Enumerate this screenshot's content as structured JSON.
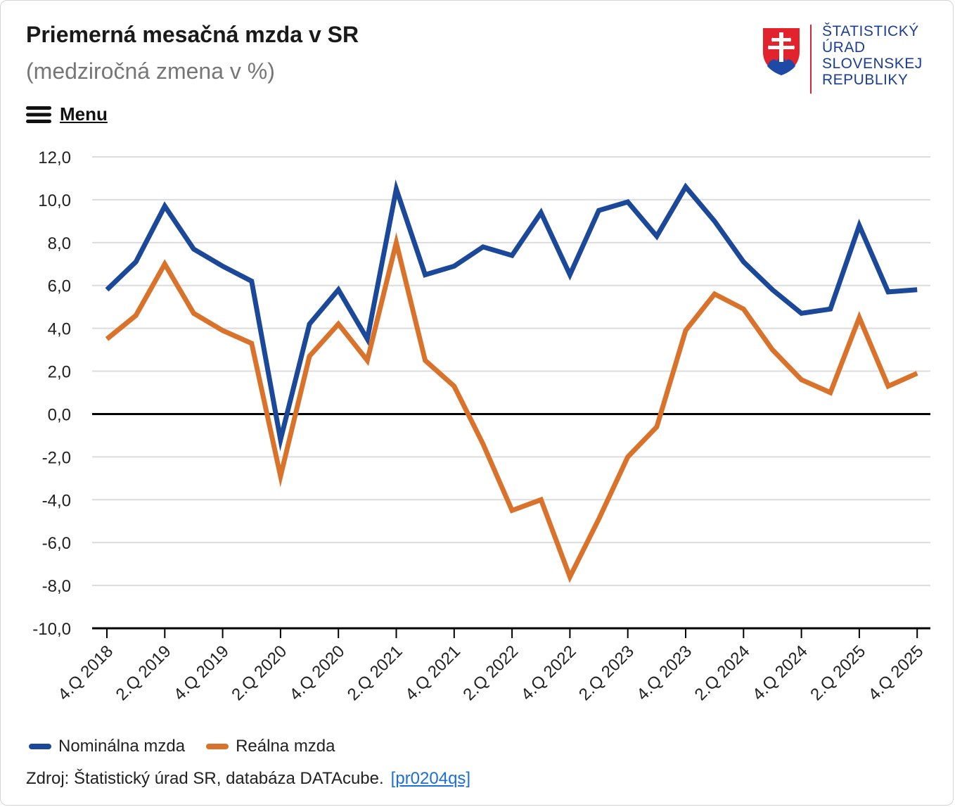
{
  "header": {
    "title": "Priemerná mesačná mzda v SR",
    "subtitle": "(medziročná zmena v %)"
  },
  "menu": {
    "label": "Menu",
    "icon": "hamburger-icon"
  },
  "logo": {
    "lines": [
      "ŠTATISTICKÝ",
      "ÚRAD",
      "SLOVENSKEJ",
      "REPUBLIKY"
    ],
    "crest_icon": "slovak-coat-of-arms-icon",
    "text_color": "#1c3d96",
    "accent_color": "#d0283a"
  },
  "source": {
    "text": "Zdroj: Štatistický úrad SR, databáza DATAcube.",
    "link_text": "[pr0204qs]"
  },
  "chart_data": {
    "type": "line",
    "title": "Priemerná mesačná mzda v SR",
    "subtitle": "(medziročná zmena v %)",
    "xlabel": "",
    "ylabel": "",
    "ylim": [
      -10,
      12
    ],
    "yticks": [
      12,
      10,
      8,
      6,
      4,
      2,
      0,
      -2,
      -4,
      -6,
      -8,
      -10
    ],
    "ytick_labels": [
      "12,0",
      "10,0",
      "8,0",
      "6,0",
      "4,0",
      "2,0",
      "0,0",
      "-2,0",
      "-4,0",
      "-6,0",
      "-8,0",
      "-10,0"
    ],
    "grid": true,
    "legend_position": "bottom-left",
    "categories": [
      "4.Q 2018",
      "1.Q 2019",
      "2.Q 2019",
      "3.Q 2019",
      "4.Q 2019",
      "1.Q 2020",
      "2.Q 2020",
      "3.Q 2020",
      "4.Q 2020",
      "1.Q 2021",
      "2.Q 2021",
      "3.Q 2021",
      "4.Q 2021",
      "1.Q 2022",
      "2.Q 2022",
      "3.Q 2022",
      "4.Q 2022",
      "1.Q 2023",
      "2.Q 2023",
      "3.Q 2023",
      "4.Q 2023",
      "1.Q 2024",
      "2.Q 2024",
      "3.Q 2024",
      "4.Q 2024",
      "1.Q 2025",
      "2.Q 2025",
      "3.Q 2025",
      "4.Q 2025"
    ],
    "tick_labels": [
      "4.Q 2018",
      "2.Q 2019",
      "4.Q 2019",
      "2.Q 2020",
      "4.Q 2020",
      "2.Q 2021",
      "4.Q 2021",
      "2.Q 2022",
      "4.Q 2022",
      "2.Q 2023",
      "4.Q 2023",
      "2.Q 2024",
      "4.Q 2024",
      "2.Q 2025",
      "4.Q 2025"
    ],
    "series": [
      {
        "name": "Nominálna mzda",
        "color": "#1b4899",
        "values": [
          5.8,
          7.1,
          9.7,
          7.7,
          6.9,
          6.2,
          -1.2,
          4.2,
          5.8,
          3.5,
          10.5,
          6.5,
          6.9,
          7.8,
          7.4,
          9.4,
          6.5,
          9.5,
          9.9,
          8.3,
          10.6,
          9.0,
          7.1,
          5.8,
          4.7,
          4.9,
          8.8,
          5.7,
          5.8
        ]
      },
      {
        "name": "Reálna mzda",
        "color": "#d9722a",
        "values": [
          3.5,
          4.6,
          7.0,
          4.7,
          3.9,
          3.3,
          -2.9,
          2.7,
          4.2,
          2.5,
          8.0,
          2.5,
          1.3,
          -1.4,
          -4.5,
          -4.0,
          -7.6,
          -4.9,
          -2.0,
          -0.6,
          3.9,
          5.6,
          4.9,
          3.0,
          1.6,
          1.0,
          4.5,
          1.3,
          1.9
        ]
      }
    ]
  }
}
